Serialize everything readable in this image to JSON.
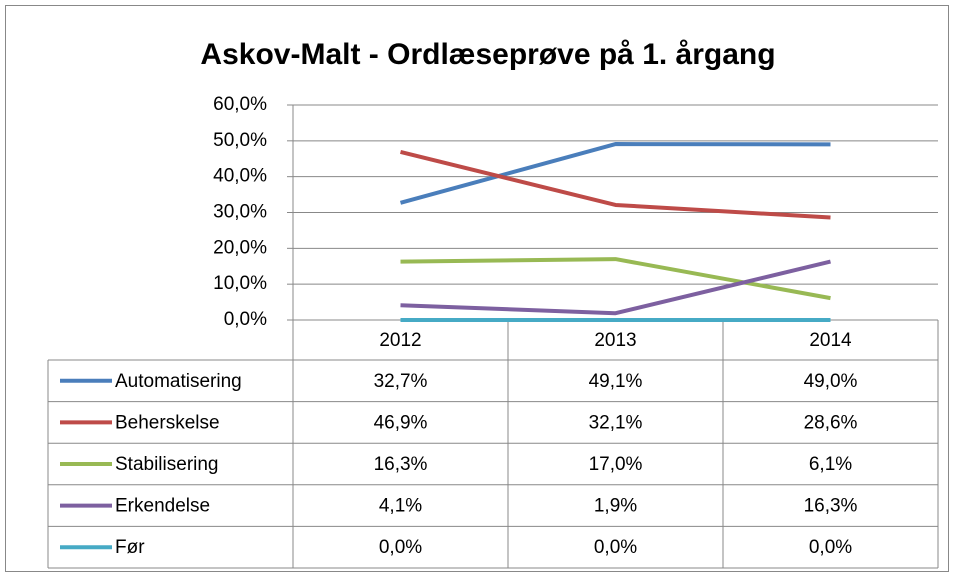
{
  "chart_data": {
    "type": "line",
    "title": "Askov-Malt - Ordlæseprøve på 1. årgang",
    "categories": [
      "2012",
      "2013",
      "2014"
    ],
    "ylim": [
      0,
      60
    ],
    "yticks": [
      {
        "value": 0,
        "label": "0,0%"
      },
      {
        "value": 10,
        "label": "10,0%"
      },
      {
        "value": 20,
        "label": "20,0%"
      },
      {
        "value": 30,
        "label": "30,0%"
      },
      {
        "value": 40,
        "label": "40,0%"
      },
      {
        "value": 50,
        "label": "50,0%"
      },
      {
        "value": 60,
        "label": "60,0%"
      }
    ],
    "grid": true,
    "series": [
      {
        "name": "Automatisering",
        "color": "#4a7ebb",
        "values": [
          32.7,
          49.1,
          49.0
        ],
        "value_labels": [
          "32,7%",
          "49,1%",
          "49,0%"
        ]
      },
      {
        "name": "Beherskelse",
        "color": "#be4b48",
        "values": [
          46.9,
          32.1,
          28.6
        ],
        "value_labels": [
          "46,9%",
          "32,1%",
          "28,6%"
        ]
      },
      {
        "name": "Stabilisering",
        "color": "#98b954",
        "values": [
          16.3,
          17.0,
          6.1
        ],
        "value_labels": [
          "16,3%",
          "17,0%",
          "6,1%"
        ]
      },
      {
        "name": "Erkendelse",
        "color": "#7d60a0",
        "values": [
          4.1,
          1.9,
          16.3
        ],
        "value_labels": [
          "4,1%",
          "1,9%",
          "16,3%"
        ]
      },
      {
        "name": "Før",
        "color": "#46aac5",
        "values": [
          0.0,
          0.0,
          0.0
        ],
        "value_labels": [
          "0,0%",
          "0,0%",
          "0,0%"
        ]
      }
    ]
  }
}
